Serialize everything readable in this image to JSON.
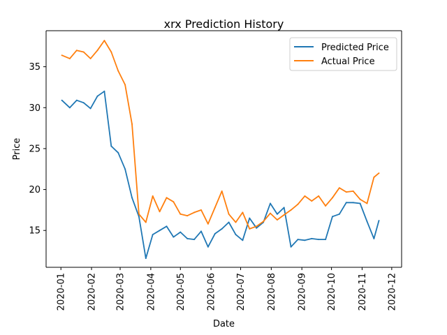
{
  "chart_data": {
    "type": "line",
    "title": "xrx Prediction History",
    "xlabel": "Date",
    "ylabel": "Price",
    "x_ticks": [
      "2020-01",
      "2020-02",
      "2020-03",
      "2020-04",
      "2020-05",
      "2020-06",
      "2020-07",
      "2020-08",
      "2020-09",
      "2020-10",
      "2020-11",
      "2020-12"
    ],
    "y_ticks": [
      15,
      20,
      25,
      30,
      35
    ],
    "xlim": [
      "2019-12-17",
      "2020-12-11"
    ],
    "ylim": [
      10.5,
      39.4
    ],
    "grid": false,
    "legend_position": "top-right",
    "x_dates": [
      "2020-01-02",
      "2020-01-10",
      "2020-01-17",
      "2020-01-24",
      "2020-01-31",
      "2020-02-07",
      "2020-02-14",
      "2020-02-21",
      "2020-02-28",
      "2020-03-06",
      "2020-03-13",
      "2020-03-20",
      "2020-03-27",
      "2020-04-03",
      "2020-04-10",
      "2020-04-17",
      "2020-04-24",
      "2020-05-01",
      "2020-05-08",
      "2020-05-15",
      "2020-05-22",
      "2020-05-29",
      "2020-06-05",
      "2020-06-12",
      "2020-06-19",
      "2020-06-26",
      "2020-07-03",
      "2020-07-10",
      "2020-07-17",
      "2020-07-24",
      "2020-07-31",
      "2020-08-07",
      "2020-08-14",
      "2020-08-21",
      "2020-08-28",
      "2020-09-04",
      "2020-09-11",
      "2020-09-18",
      "2020-09-25",
      "2020-10-02",
      "2020-10-09",
      "2020-10-16",
      "2020-10-23",
      "2020-10-30",
      "2020-11-06",
      "2020-11-13",
      "2020-11-18"
    ],
    "series": [
      {
        "name": "Predicted Price",
        "color": "#1f77b4",
        "values": [
          30.9,
          30.0,
          30.9,
          30.6,
          29.9,
          31.4,
          32.0,
          25.3,
          24.5,
          22.5,
          19.0,
          16.7,
          11.6,
          14.5,
          15.0,
          15.5,
          14.2,
          14.8,
          14.0,
          13.9,
          14.9,
          13.0,
          14.6,
          15.2,
          16.0,
          14.5,
          13.8,
          16.5,
          15.3,
          16.0,
          18.3,
          17.0,
          17.8,
          13.0,
          13.9,
          13.8,
          14.0,
          13.9,
          13.9,
          16.7,
          17.0,
          18.4,
          18.4,
          18.3,
          16.1,
          14.0,
          16.2
        ]
      },
      {
        "name": "Actual Price",
        "color": "#ff7f0e",
        "values": [
          36.4,
          36.0,
          37.0,
          36.8,
          36.0,
          37.0,
          38.2,
          36.8,
          34.5,
          32.8,
          28.0,
          17.0,
          16.0,
          19.2,
          17.3,
          19.0,
          18.5,
          17.0,
          16.8,
          17.2,
          17.5,
          15.8,
          17.8,
          19.8,
          17.0,
          16.0,
          17.2,
          15.2,
          15.5,
          16.1,
          17.1,
          16.3,
          16.9,
          17.5,
          18.2,
          19.2,
          18.6,
          19.2,
          18.0,
          19.0,
          20.2,
          19.7,
          19.8,
          18.8,
          18.3,
          21.5,
          22.0
        ]
      }
    ]
  }
}
